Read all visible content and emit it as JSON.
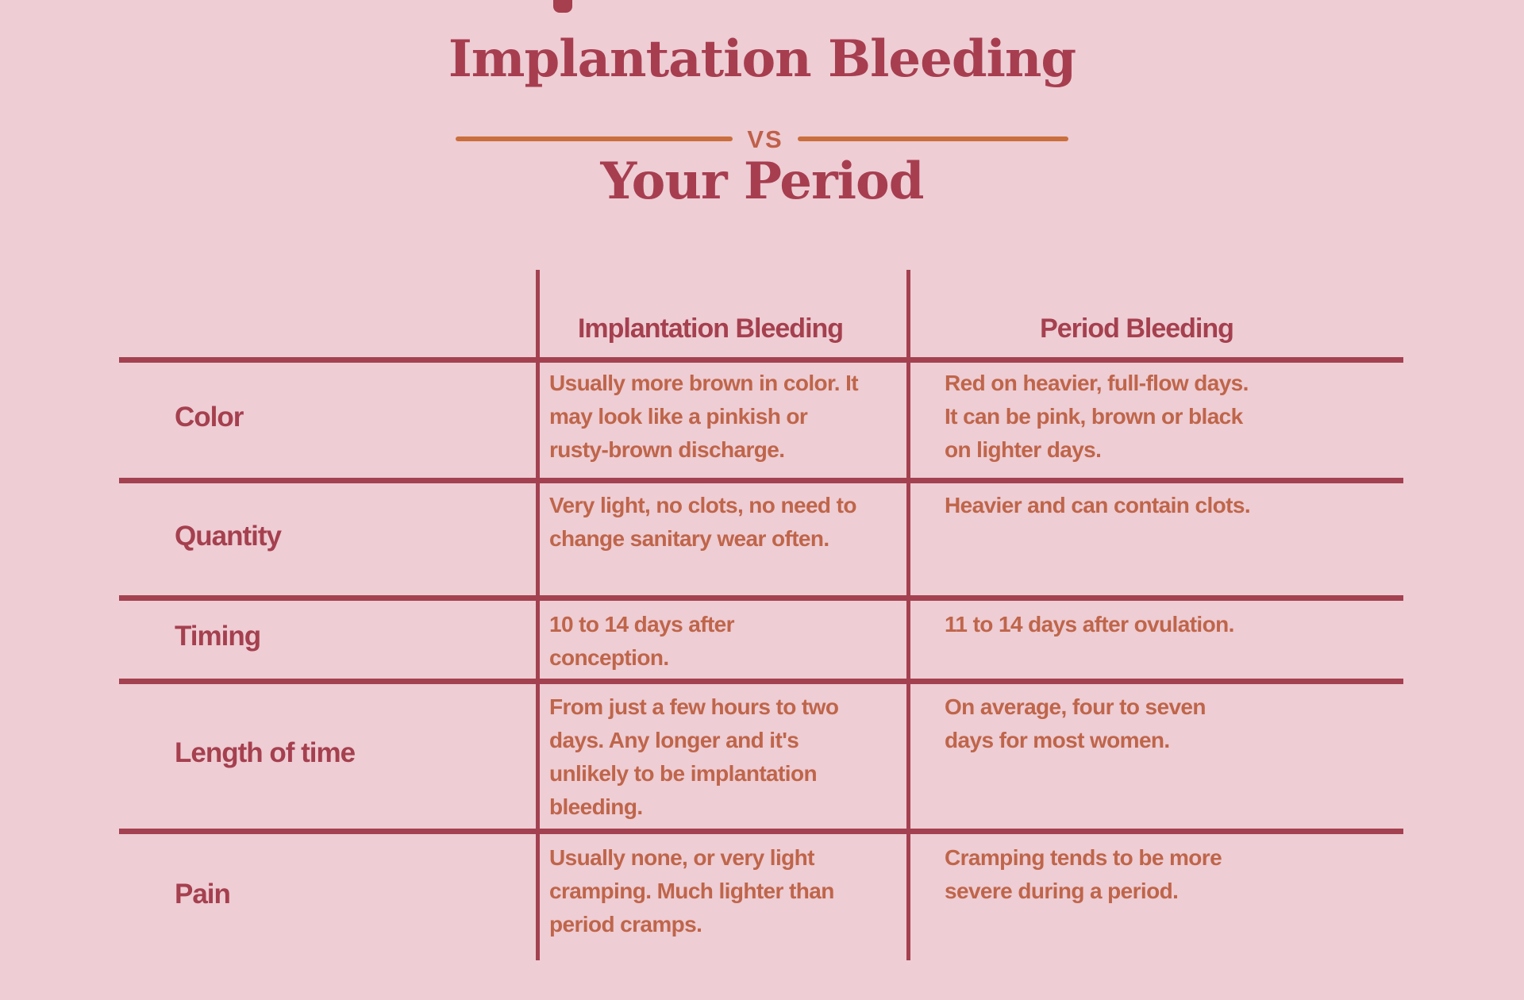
{
  "page": {
    "title_line1": "Implantation Bleeding",
    "divider_label": "VS",
    "title_line2": "Your Period",
    "colors": {
      "background": "#eecdd4",
      "maroon_lines_and_labels": "#a34150",
      "title_maroon": "#a73e50",
      "rust_cell_text": "#bf654a",
      "orange_divider_line": "#c96e3c"
    }
  },
  "table": {
    "column_headers": [
      "Implantation Bleeding",
      "Period Bleeding"
    ],
    "rows": [
      {
        "label": "Color",
        "implantation": "Usually more brown in color. It\nmay look like a pinkish or\nrusty-brown discharge.",
        "period": "Red on heavier, full-flow days.\nIt can be pink, brown or black\non lighter days."
      },
      {
        "label": "Quantity",
        "implantation": "Very light, no clots, no need to\nchange sanitary wear often.",
        "period": "Heavier and can contain clots."
      },
      {
        "label": "Timing",
        "implantation": "10 to 14 days after\nconception.",
        "period": "11 to 14 days after ovulation."
      },
      {
        "label": "Length of time",
        "implantation": "From just a few hours to two\ndays. Any longer and it's\nunlikely to be implantation\nbleeding.",
        "period": "On average, four to seven\ndays for most women."
      },
      {
        "label": "Pain",
        "implantation": "Usually none, or very light\ncramping. Much lighter than\nperiod cramps.",
        "period": "Cramping tends to be more\nsevere during a period."
      }
    ]
  }
}
